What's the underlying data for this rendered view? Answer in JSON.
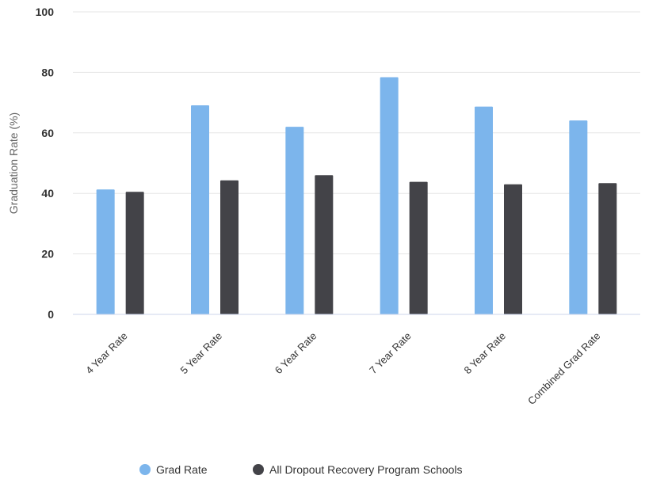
{
  "chart_data": {
    "type": "bar",
    "categories": [
      "4 Year Rate",
      "5 Year Rate",
      "6 Year Rate",
      "7 Year Rate",
      "8 Year Rate",
      "Combined Grad Rate"
    ],
    "series": [
      {
        "name": "Grad Rate",
        "color": "#7cb5ec",
        "values": [
          41.3,
          69.1,
          62.0,
          78.4,
          68.7,
          64.1
        ]
      },
      {
        "name": "All Dropout Recovery Program Schools",
        "color": "#434348",
        "values": [
          40.5,
          44.3,
          46.0,
          43.8,
          43.0,
          43.4
        ]
      }
    ],
    "ylabel": "Graduation Rate (%)",
    "xlabel": "",
    "ylim": [
      0,
      100
    ],
    "yticks": [
      0,
      20,
      40,
      60,
      80,
      100
    ],
    "grid": true,
    "legend_position": "bottom-center"
  }
}
